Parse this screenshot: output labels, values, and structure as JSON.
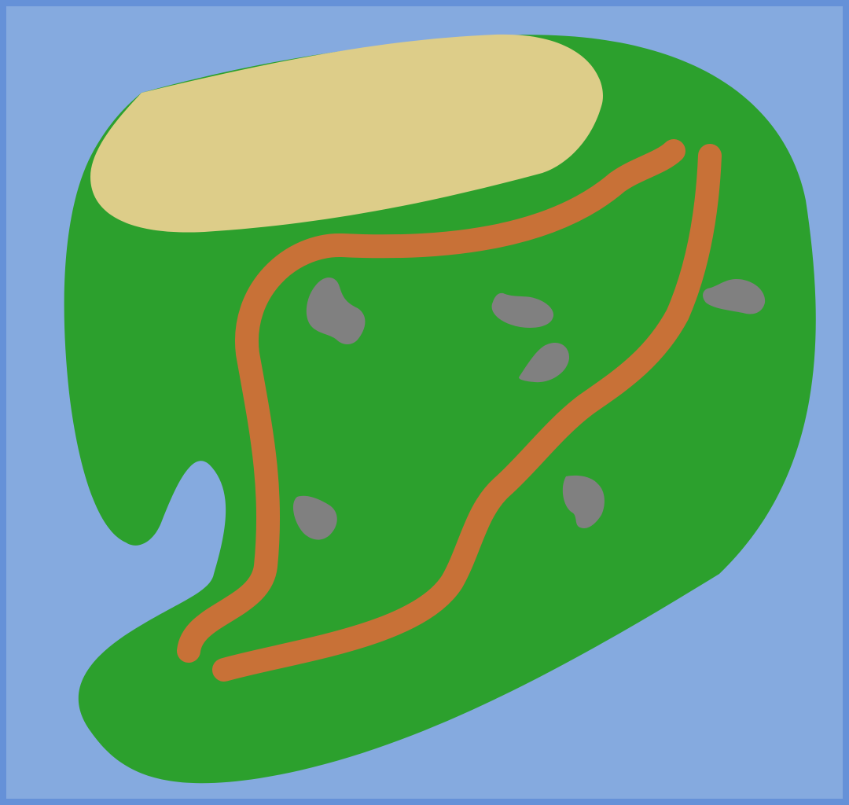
{
  "map": {
    "colors": {
      "frame": "#6591d8",
      "water": "#85aadf",
      "land": "#2ca02d",
      "sand": "#ddcd89",
      "path": "#c87137",
      "rock": "#808080"
    },
    "features": {
      "island": {
        "icon": "island-shape"
      },
      "beach": {
        "icon": "sand-area"
      },
      "paths": [
        {
          "name": "left-trail"
        },
        {
          "name": "right-trail"
        }
      ],
      "rocks": [
        {
          "name": "rock-1"
        },
        {
          "name": "rock-2"
        },
        {
          "name": "rock-3"
        },
        {
          "name": "rock-4"
        },
        {
          "name": "rock-5"
        },
        {
          "name": "rock-6"
        }
      ]
    }
  }
}
